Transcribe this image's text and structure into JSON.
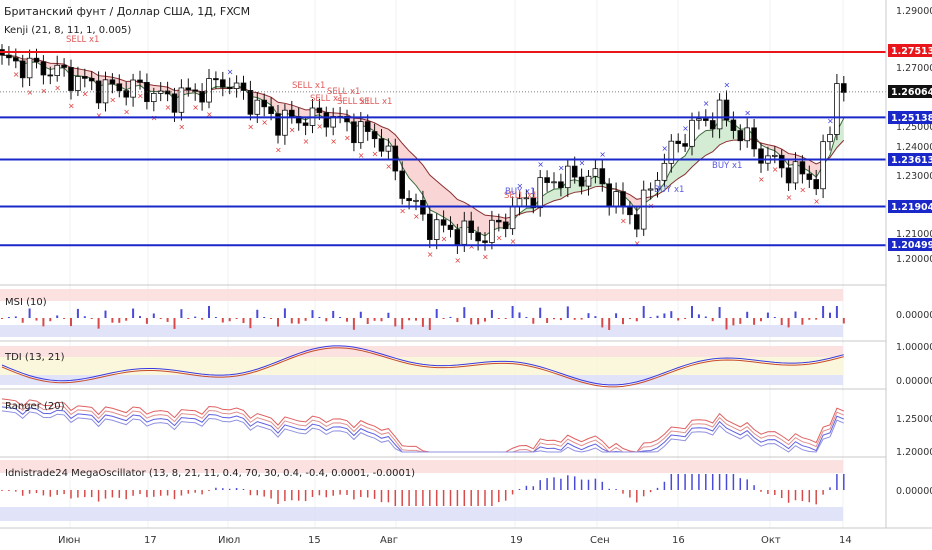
{
  "header": {
    "title": "Британский фунт / Доллар США, 1Д, FXCM",
    "indicator": "Kenji (21, 8, 11, 1, 0.005)"
  },
  "main_axis": {
    "ticks": [
      "1.29000",
      "1.27000",
      "1.25000",
      "1.24000",
      "1.23000",
      "1.21000",
      "1.20000"
    ]
  },
  "levels": [
    {
      "label": "1.27513",
      "value": 1.27513,
      "color": "#e8161a"
    },
    {
      "label": "1.26064",
      "value": 1.26064,
      "color": "#111111"
    },
    {
      "label": "1.25138",
      "value": 1.25138,
      "color": "#1a28c9"
    },
    {
      "label": "1.23613",
      "value": 1.23613,
      "color": "#1a28c9"
    },
    {
      "label": "1.21904",
      "value": 1.21904,
      "color": "#1a28c9"
    },
    {
      "label": "1.20499",
      "value": 1.20499,
      "color": "#1a28c9"
    }
  ],
  "signals": [
    "SELL x1",
    "SELL x1",
    "SELL x1",
    "SELL x1",
    "SELL x1",
    "SELL x1",
    "SELL x1",
    "BUY x1",
    "BUY x1",
    "BUY x1"
  ],
  "panels": {
    "msi": {
      "label": "MSI (10)",
      "ticks": [
        "0.00000"
      ]
    },
    "tdi": {
      "label": "TDI (13, 21)",
      "ticks": [
        "1.00000",
        "0.00000"
      ]
    },
    "ranger": {
      "label": "Ranger (20)",
      "ticks": [
        "1.25000",
        "1.20000"
      ]
    },
    "mega": {
      "label": "Idnistrade24 MegaOscillator (13, 8, 21, 11, 0.4, 70, 30, 0.4, -0.4, 0.0001, -0.0001)",
      "ticks": [
        "0.00000"
      ]
    }
  },
  "time_axis": {
    "labels": [
      "Июн",
      "17",
      "Июл",
      "15",
      "Авг",
      "19",
      "Сен",
      "16",
      "Окт",
      "14"
    ]
  },
  "colors": {
    "bull": "#ffffff",
    "bear": "#000000",
    "sell": "#e03a3a",
    "buy": "#3a3ae0",
    "cloud_red": "#f7caca",
    "cloud_green": "#c9e6c9"
  }
}
